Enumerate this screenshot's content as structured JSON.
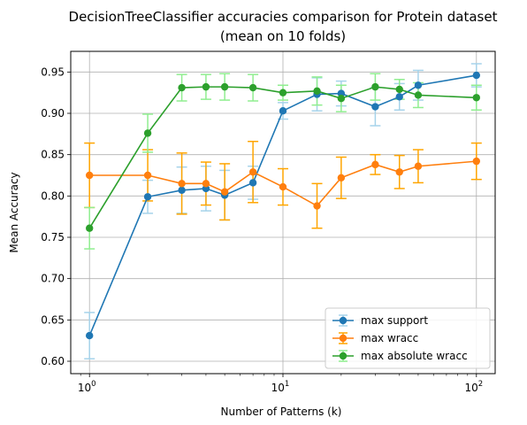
{
  "chart_data": {
    "type": "line",
    "title_line1": "DecisionTreeClassifier accuracies comparison for Protein dataset",
    "title_line2": "(mean on 10 folds)",
    "xlabel": "Number of Patterns (k)",
    "ylabel": "Mean Accuracy",
    "xscale": "log",
    "xlim": [
      0.8,
      125
    ],
    "ylim": [
      0.585,
      0.975
    ],
    "x_ticks": [
      {
        "value": 1,
        "base": "10",
        "exp": "0"
      },
      {
        "value": 10,
        "base": "10",
        "exp": "1"
      },
      {
        "value": 100,
        "base": "10",
        "exp": "2"
      }
    ],
    "y_ticks": [
      0.6,
      0.65,
      0.7,
      0.75,
      0.8,
      0.85,
      0.9,
      0.95
    ],
    "y_tick_labels": [
      "0.60",
      "0.65",
      "0.70",
      "0.75",
      "0.80",
      "0.85",
      "0.90",
      "0.95"
    ],
    "grid": true,
    "legend_position": "lower-right",
    "series": [
      {
        "name": "max support",
        "color": "#1f77b4",
        "err_color": "#a6d3ea",
        "x": [
          1,
          2,
          3,
          4,
          5,
          7,
          10,
          15,
          20,
          30,
          40,
          50,
          100
        ],
        "y": [
          0.631,
          0.799,
          0.807,
          0.809,
          0.801,
          0.816,
          0.903,
          0.923,
          0.924,
          0.908,
          0.92,
          0.934,
          0.946
        ],
        "err": [
          0.028,
          0.02,
          0.028,
          0.027,
          0.03,
          0.02,
          0.01,
          0.02,
          0.015,
          0.023,
          0.016,
          0.018,
          0.014
        ]
      },
      {
        "name": "max wracc",
        "color": "#ff7f0e",
        "err_color": "#ffa500",
        "x": [
          1,
          2,
          3,
          4,
          5,
          7,
          10,
          15,
          20,
          30,
          40,
          50,
          100
        ],
        "y": [
          0.825,
          0.825,
          0.815,
          0.815,
          0.805,
          0.829,
          0.811,
          0.788,
          0.822,
          0.838,
          0.829,
          0.836,
          0.842
        ],
        "err": [
          0.039,
          0.031,
          0.037,
          0.026,
          0.034,
          0.037,
          0.022,
          0.027,
          0.025,
          0.012,
          0.02,
          0.02,
          0.022
        ]
      },
      {
        "name": "max absolute wracc",
        "color": "#2ca02c",
        "err_color": "#90ee90",
        "x": [
          1,
          2,
          3,
          4,
          5,
          7,
          10,
          15,
          20,
          30,
          40,
          50,
          100
        ],
        "y": [
          0.761,
          0.876,
          0.931,
          0.932,
          0.932,
          0.931,
          0.925,
          0.927,
          0.918,
          0.932,
          0.929,
          0.922,
          0.919
        ],
        "err": [
          0.025,
          0.023,
          0.016,
          0.015,
          0.016,
          0.016,
          0.009,
          0.017,
          0.016,
          0.016,
          0.012,
          0.015,
          0.015
        ]
      }
    ]
  }
}
